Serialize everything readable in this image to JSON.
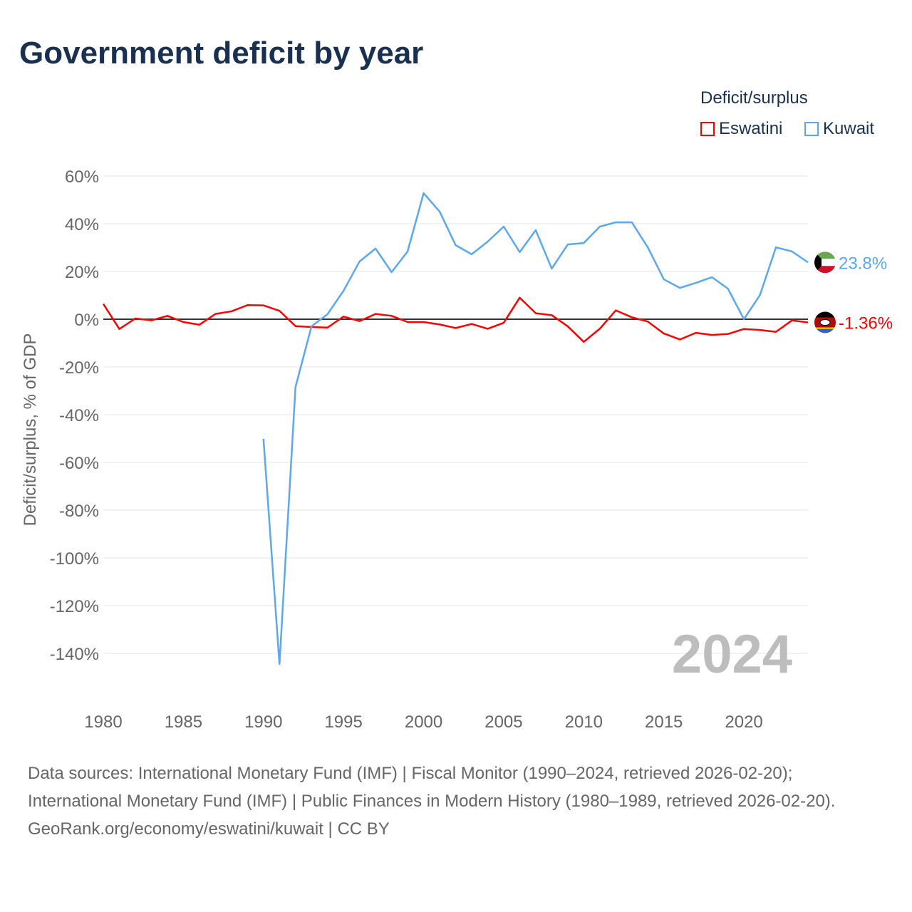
{
  "chart_data": {
    "type": "line",
    "title": "Government deficit by year",
    "ylabel": "Deficit/surplus, % of GDP",
    "xlabel": "",
    "legend_title": "Deficit/surplus",
    "legend_placement": "top-right",
    "xlim": [
      1980,
      2024
    ],
    "ylim": [
      -150,
      60
    ],
    "x_ticks": [
      1980,
      1985,
      1990,
      1995,
      2000,
      2005,
      2010,
      2015,
      2020
    ],
    "x_tick_labels": [
      "1980",
      "1985",
      "1990",
      "1995",
      "2000",
      "2005",
      "2010",
      "2015",
      "2020"
    ],
    "y_ticks": [
      60,
      40,
      20,
      0,
      -20,
      -40,
      -60,
      -80,
      -100,
      -120,
      -140
    ],
    "y_tick_labels": [
      "60%",
      "40%",
      "20%",
      "0%",
      "-20%",
      "-40%",
      "-60%",
      "-80%",
      "-100%",
      "-120%",
      "-140%"
    ],
    "grid": true,
    "year_watermark": "2024",
    "series": [
      {
        "name": "Eswatini",
        "color": "#ff0000",
        "end_label": "-1.36%",
        "start_year": 1980,
        "values": [
          6.4,
          -4.1,
          0.3,
          -0.5,
          1.4,
          -1.2,
          -2.3,
          2.2,
          3.3,
          5.9,
          5.8,
          3.5,
          -2.9,
          -3.3,
          -3.5,
          1.1,
          -0.8,
          2.2,
          1.4,
          -1.2,
          -1.2,
          -2.2,
          -3.7,
          -2.0,
          -4.0,
          -1.5,
          9.0,
          2.5,
          1.7,
          -3.0,
          -9.5,
          -4.0,
          3.7,
          0.8,
          -1.0,
          -6.0,
          -8.5,
          -5.7,
          -6.6,
          -6.2,
          -4.1,
          -4.5,
          -5.3,
          -0.5,
          -1.36
        ]
      },
      {
        "name": "Kuwait",
        "color": "#5ba8ec",
        "end_label": "23.8%",
        "start_year": 1990,
        "values": [
          -50.1,
          -144.5,
          -28.4,
          -3.0,
          2.1,
          11.9,
          24.2,
          29.6,
          19.7,
          28.4,
          52.8,
          45.1,
          31.0,
          27.2,
          32.5,
          38.8,
          28.1,
          37.3,
          21.2,
          31.3,
          31.9,
          38.8,
          40.6,
          40.6,
          30.1,
          16.7,
          13.1,
          15.2,
          17.6,
          12.8,
          0.0,
          10.1,
          30.1,
          28.4,
          23.8
        ]
      }
    ]
  },
  "footer": {
    "sources": "Data sources: International Monetary Fund (IMF) | Fiscal Monitor (1990–2024, retrieved 2026-02-20); International Monetary Fund (IMF) | Public Finances in Modern History (1980–1989, retrieved 2026-02-20).",
    "credit": "GeoRank.org/economy/eswatini/kuwait | CC BY"
  }
}
